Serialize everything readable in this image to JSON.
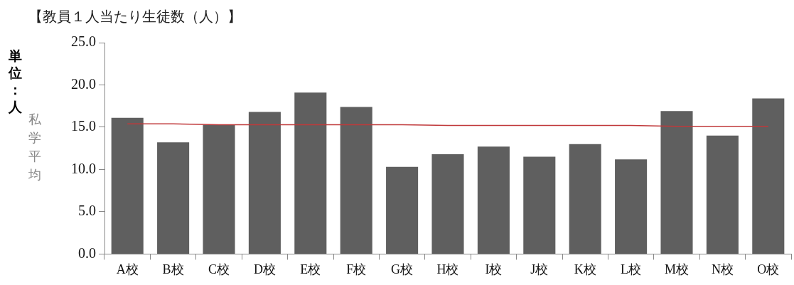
{
  "chart_data": {
    "type": "bar",
    "title": "【教員１人当たり生徒数（人）】",
    "ylabel": "単位：人",
    "categories": [
      "A校",
      "B校",
      "C校",
      "D校",
      "E校",
      "F校",
      "G校",
      "H校",
      "I校",
      "J校",
      "K校",
      "L校",
      "M校",
      "N校",
      "O校"
    ],
    "series": [
      {
        "color": "#5f5f5f",
        "values": [
          16.1,
          13.2,
          15.3,
          16.8,
          19.1,
          17.4,
          10.3,
          11.8,
          12.7,
          11.5,
          13.0,
          11.2,
          16.9,
          14.0,
          18.4
        ]
      },
      {
        "type": "line",
        "name": "私学平均",
        "color": "#c0393b",
        "values": [
          15.4,
          15.4,
          15.3,
          15.3,
          15.3,
          15.3,
          15.3,
          15.2,
          15.2,
          15.2,
          15.2,
          15.2,
          15.1,
          15.1,
          15.1
        ]
      }
    ],
    "ylim": [
      0,
      25
    ],
    "yticks": [
      {
        "value": 0,
        "label": "0.0"
      },
      {
        "value": 5,
        "label": "5.0"
      },
      {
        "value": 10,
        "label": "10.0"
      },
      {
        "value": 15,
        "label": "15.0"
      },
      {
        "value": 20,
        "label": "20.0"
      },
      {
        "value": 25,
        "label": "25.0"
      }
    ],
    "grid": false,
    "legend": false,
    "marker": "none"
  }
}
